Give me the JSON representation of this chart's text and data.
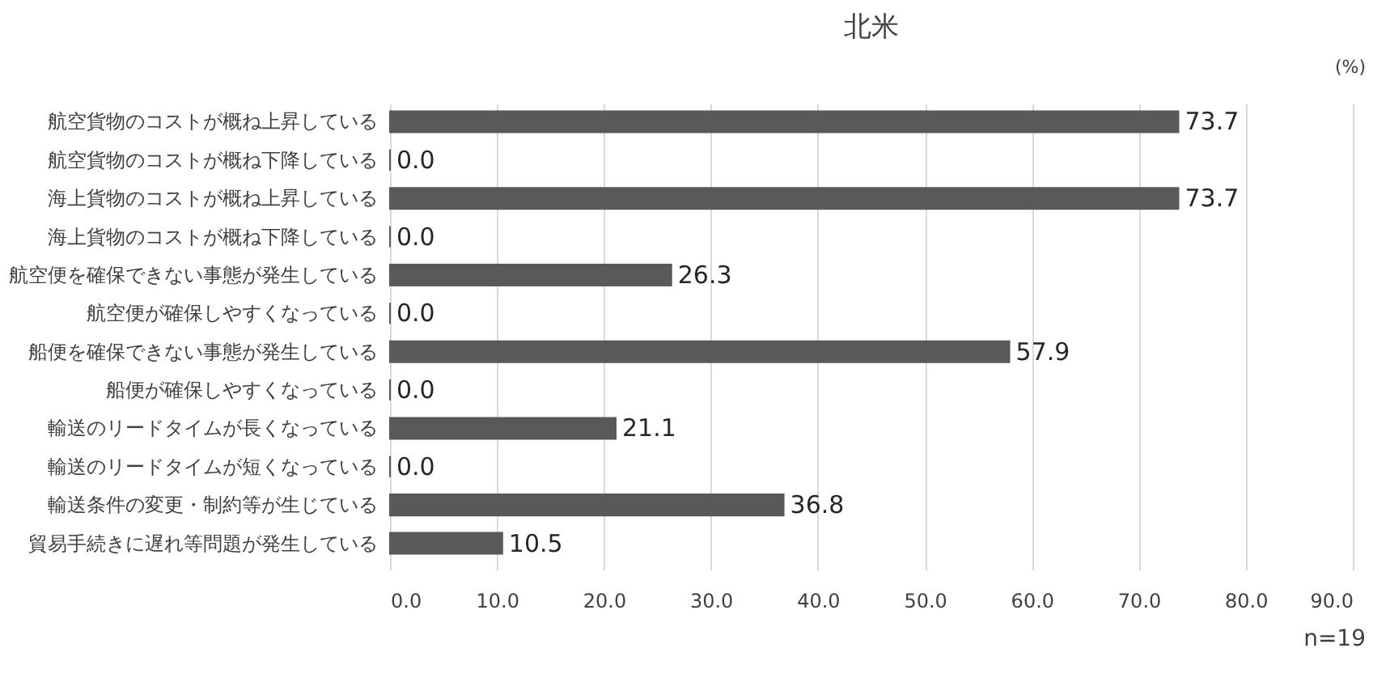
{
  "chart_data": {
    "type": "bar",
    "orientation": "horizontal",
    "title": "北米",
    "categories": [
      "航空貨物のコストが概ね上昇している",
      "航空貨物のコストが概ね下降している",
      "海上貨物のコストが概ね上昇している",
      "海上貨物のコストが概ね下降している",
      "航空便を確保できない事態が発生している",
      "航空便が確保しやすくなっている",
      "船便を確保できない事態が発生している",
      "船便が確保しやすくなっている",
      "輸送のリードタイムが長くなっている",
      "輸送のリードタイムが短くなっている",
      "輸送条件の変更・制約等が生じている",
      "貿易手続きに遅れ等問題が発生している"
    ],
    "values": [
      73.7,
      0.0,
      73.7,
      0.0,
      26.3,
      0.0,
      57.9,
      0.0,
      21.1,
      0.0,
      36.8,
      10.5
    ],
    "value_labels": [
      "73.7",
      "0.0",
      "73.7",
      "0.0",
      "26.3",
      "0.0",
      "57.9",
      "0.0",
      "21.1",
      "0.0",
      "36.8",
      "10.5"
    ],
    "color": "#595959",
    "xlim": [
      0,
      90
    ],
    "xticks": [
      {
        "value": 0,
        "label": "0.0"
      },
      {
        "value": 10,
        "label": "10.0"
      },
      {
        "value": 20,
        "label": "20.0"
      },
      {
        "value": 30,
        "label": "30.0"
      },
      {
        "value": 40,
        "label": "40.0"
      },
      {
        "value": 50,
        "label": "50.0"
      },
      {
        "value": 60,
        "label": "60.0"
      },
      {
        "value": 70,
        "label": "70.0"
      },
      {
        "value": 80,
        "label": "80.0"
      },
      {
        "value": 90,
        "label": "90.0"
      }
    ],
    "grid": "x",
    "annotations": [
      "(%)",
      "n=19"
    ]
  }
}
